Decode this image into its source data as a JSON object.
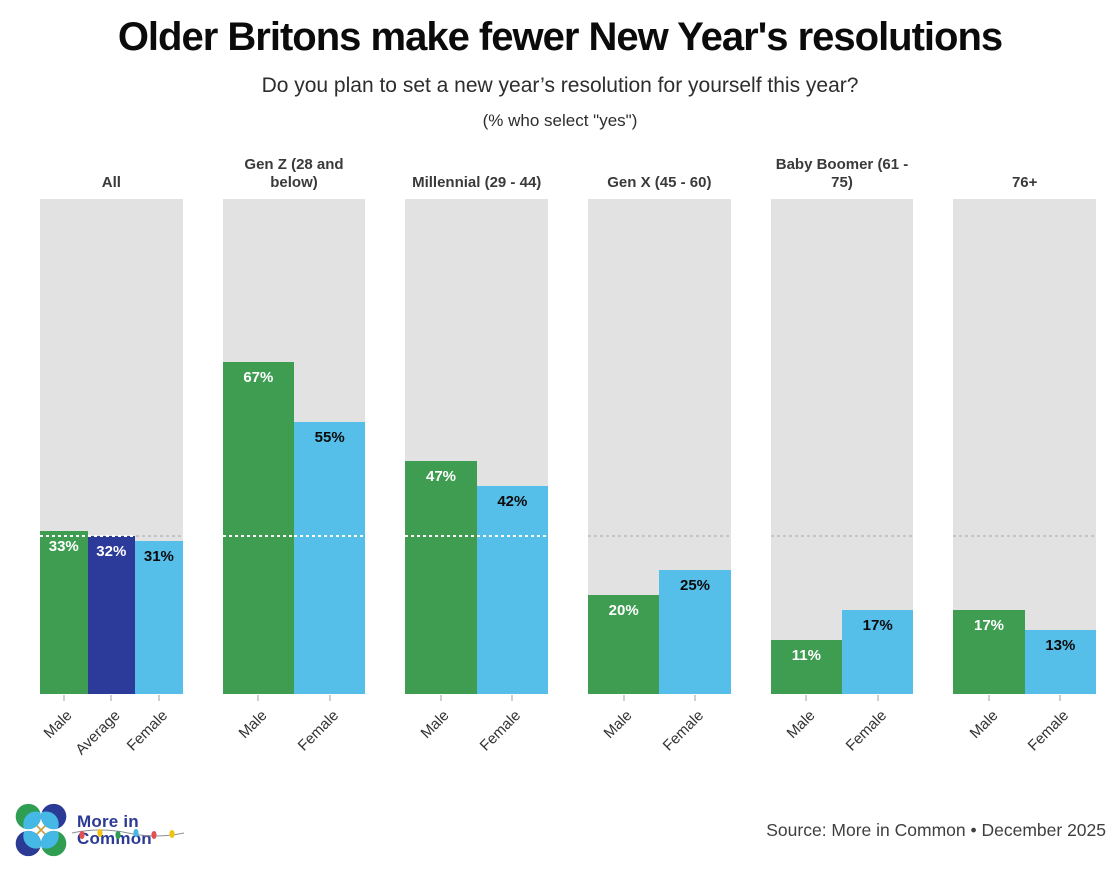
{
  "chart_data": {
    "type": "bar",
    "title": "Older Britons make fewer New Year's resolutions",
    "subtitle": "Do you plan to set a new year’s resolution for yourself this year?",
    "note": "(% who select \"yes\")",
    "ylim": [
      0,
      100
    ],
    "value_suffix": "%",
    "grid": false,
    "legend": "none",
    "reference_line": {
      "value": 32,
      "style": "dotted",
      "meaning": "average"
    },
    "panels": [
      {
        "label": "All",
        "bars": [
          {
            "category": "Male",
            "series": "male",
            "value": 33
          },
          {
            "category": "Average",
            "series": "average",
            "value": 32
          },
          {
            "category": "Female",
            "series": "female",
            "value": 31
          }
        ]
      },
      {
        "label": "Gen Z (28 and below)",
        "bars": [
          {
            "category": "Male",
            "series": "male",
            "value": 67
          },
          {
            "category": "Female",
            "series": "female",
            "value": 55
          }
        ]
      },
      {
        "label": "Millennial (29 - 44)",
        "bars": [
          {
            "category": "Male",
            "series": "male",
            "value": 47
          },
          {
            "category": "Female",
            "series": "female",
            "value": 42
          }
        ]
      },
      {
        "label": "Gen X (45 - 60)",
        "bars": [
          {
            "category": "Male",
            "series": "male",
            "value": 20
          },
          {
            "category": "Female",
            "series": "female",
            "value": 25
          }
        ]
      },
      {
        "label": "Baby Boomer (61 - 75)",
        "bars": [
          {
            "category": "Male",
            "series": "male",
            "value": 11
          },
          {
            "category": "Female",
            "series": "female",
            "value": 17
          }
        ]
      },
      {
        "label": "76+",
        "bars": [
          {
            "category": "Male",
            "series": "male",
            "value": 17
          },
          {
            "category": "Female",
            "series": "female",
            "value": 13
          }
        ]
      }
    ],
    "colors": {
      "male": "#3f9d52",
      "average": "#2c3b9a",
      "female": "#56bfe9",
      "panel_bg": "#e2e2e2",
      "ref_line_on_bg": "#c4c4c4",
      "ref_line_on_bar": "#ffffff"
    },
    "label_colors": {
      "male": "#ffffff",
      "average": "#ffffff",
      "female": "#0b0b0b"
    }
  },
  "footer": {
    "brand_line1": "More in",
    "brand_line2": "Common",
    "logo_icon": "more-in-common-four-petal-logo",
    "decoration_icon": "string-lights-decoration",
    "source": "Source: More in Common • December 2025"
  }
}
